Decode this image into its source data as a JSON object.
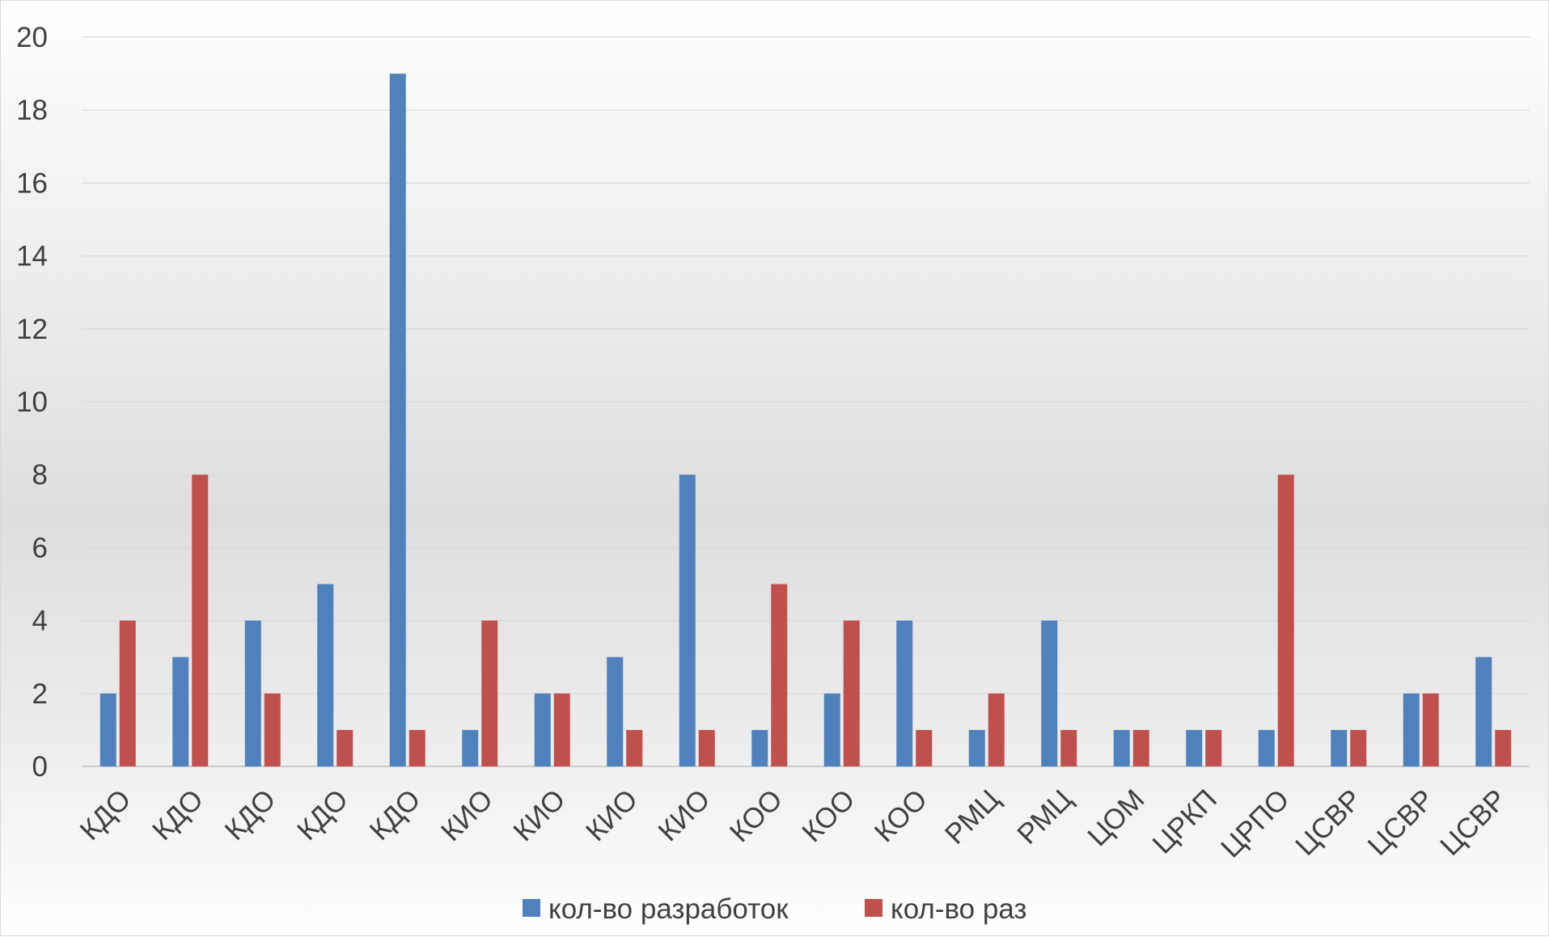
{
  "chart_data": {
    "type": "bar",
    "title": "",
    "xlabel": "",
    "ylabel": "",
    "ylim": [
      0,
      20
    ],
    "yticks": [
      0,
      2,
      4,
      6,
      8,
      10,
      12,
      14,
      16,
      18,
      20
    ],
    "grid": true,
    "legend_position": "bottom",
    "categories": [
      "КДО",
      "КДО",
      "КДО",
      "КДО",
      "КДО",
      "КИО",
      "КИО",
      "КИО",
      "КИО",
      "КОО",
      "КОО",
      "КОО",
      "РМЦ",
      "РМЦ",
      "ЦОМ",
      "ЦРКП",
      "ЦРПО",
      "ЦСВР",
      "ЦСВР",
      "ЦСВР"
    ],
    "series": [
      {
        "name": "кол-во разработок",
        "color": "#4f81bd",
        "values": [
          2,
          3,
          4,
          5,
          19,
          1,
          2,
          3,
          8,
          1,
          2,
          4,
          1,
          4,
          1,
          1,
          1,
          1,
          2,
          3
        ]
      },
      {
        "name": "кол-во раз",
        "color": "#c0504d",
        "values": [
          4,
          8,
          2,
          1,
          1,
          4,
          2,
          1,
          1,
          5,
          4,
          1,
          2,
          1,
          1,
          1,
          8,
          1,
          2,
          1
        ]
      }
    ]
  }
}
